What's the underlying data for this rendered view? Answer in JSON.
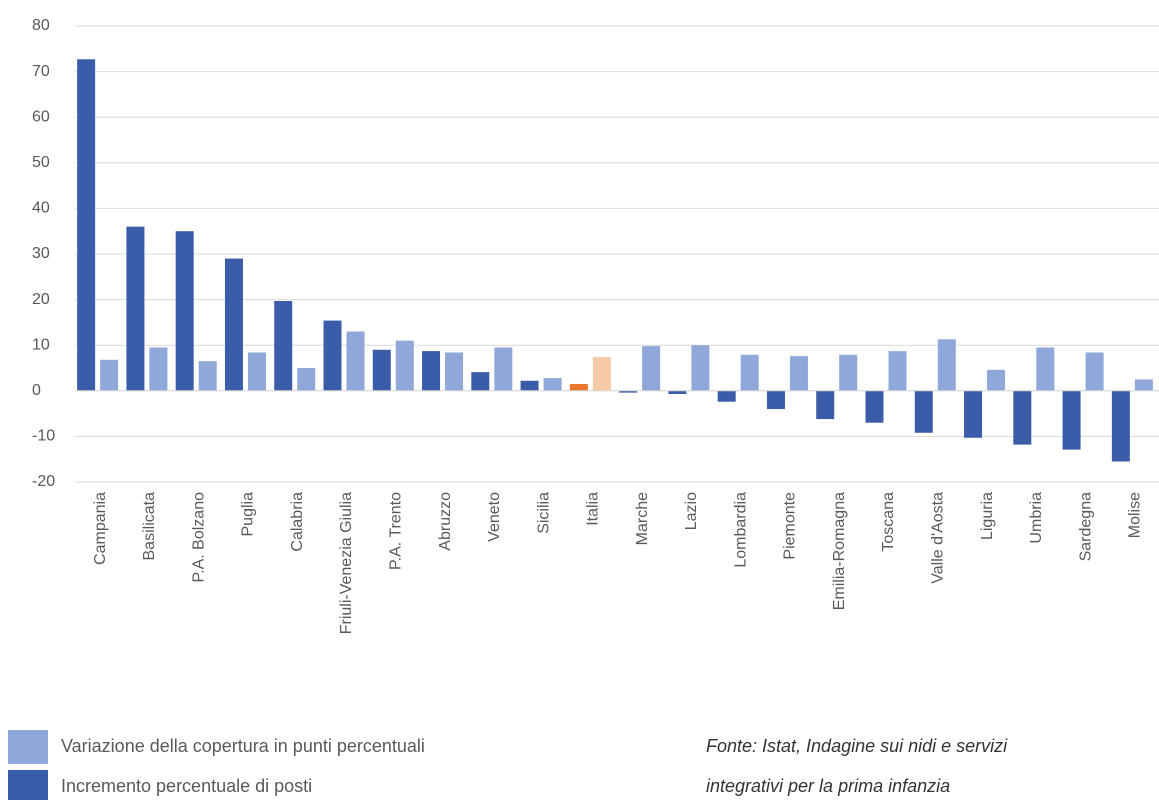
{
  "chart_data": {
    "type": "bar",
    "categories": [
      "Campania",
      "Basilicata",
      "P.A. Bolzano",
      "Puglia",
      "Calabria",
      "Friuli-Venezia Giulia",
      "P.A. Trento",
      "Abruzzo",
      "Veneto",
      "Sicilia",
      "Italia",
      "Marche",
      "Lazio",
      "Lombardia",
      "Piemonte",
      "Emilia-Romagna",
      "Toscana",
      "Valle d'Aosta",
      "Liguria",
      "Umbria",
      "Sardegna",
      "Molise"
    ],
    "series": [
      {
        "name": "Incremento percentuale di posti",
        "color": "#3b5ca8",
        "colors": [
          "#3b5ca8",
          "#3b5ca8",
          "#3b5ca8",
          "#3b5ca8",
          "#3b5ca8",
          "#3b5ca8",
          "#3b5ca8",
          "#3b5ca8",
          "#3b5ca8",
          "#3b5ca8",
          "#e8782c",
          "#3b5ca8",
          "#3b5ca8",
          "#3b5ca8",
          "#3b5ca8",
          "#3b5ca8",
          "#3b5ca8",
          "#3b5ca8",
          "#3b5ca8",
          "#3b5ca8",
          "#3b5ca8",
          "#3b5ca8"
        ],
        "values": [
          72.7,
          36,
          35,
          29,
          19.7,
          15.4,
          9,
          8.7,
          4.1,
          2.2,
          1.5,
          -0.4,
          -0.7,
          -2.4,
          -4,
          -6.2,
          -7,
          -9.2,
          -10.3,
          -11.8,
          -12.9,
          -15.5
        ]
      },
      {
        "name": "Variazione della copertura in punti percentuali",
        "color": "#8fa7d9",
        "colors": [
          "#8fa7d9",
          "#8fa7d9",
          "#8fa7d9",
          "#8fa7d9",
          "#8fa7d9",
          "#8fa7d9",
          "#8fa7d9",
          "#8fa7d9",
          "#8fa7d9",
          "#8fa7d9",
          "#f6caa6",
          "#8fa7d9",
          "#8fa7d9",
          "#8fa7d9",
          "#8fa7d9",
          "#8fa7d9",
          "#8fa7d9",
          "#8fa7d9",
          "#8fa7d9",
          "#8fa7d9",
          "#8fa7d9",
          "#8fa7d9"
        ],
        "values": [
          6.8,
          9.5,
          6.5,
          8.4,
          5,
          13,
          11,
          8.4,
          9.5,
          2.8,
          7.4,
          9.8,
          10,
          7.9,
          7.6,
          7.9,
          8.7,
          11.3,
          4.6,
          9.5,
          8.4,
          2.5
        ]
      }
    ],
    "ylim": [
      -20,
      80
    ],
    "yticks": [
      -20,
      -10,
      0,
      10,
      20,
      30,
      40,
      50,
      60,
      70,
      80
    ],
    "grid": true,
    "note": [
      "Fonte: Istat, Indagine sui nidi e servizi",
      "integrativi per la prima infanzia"
    ]
  }
}
